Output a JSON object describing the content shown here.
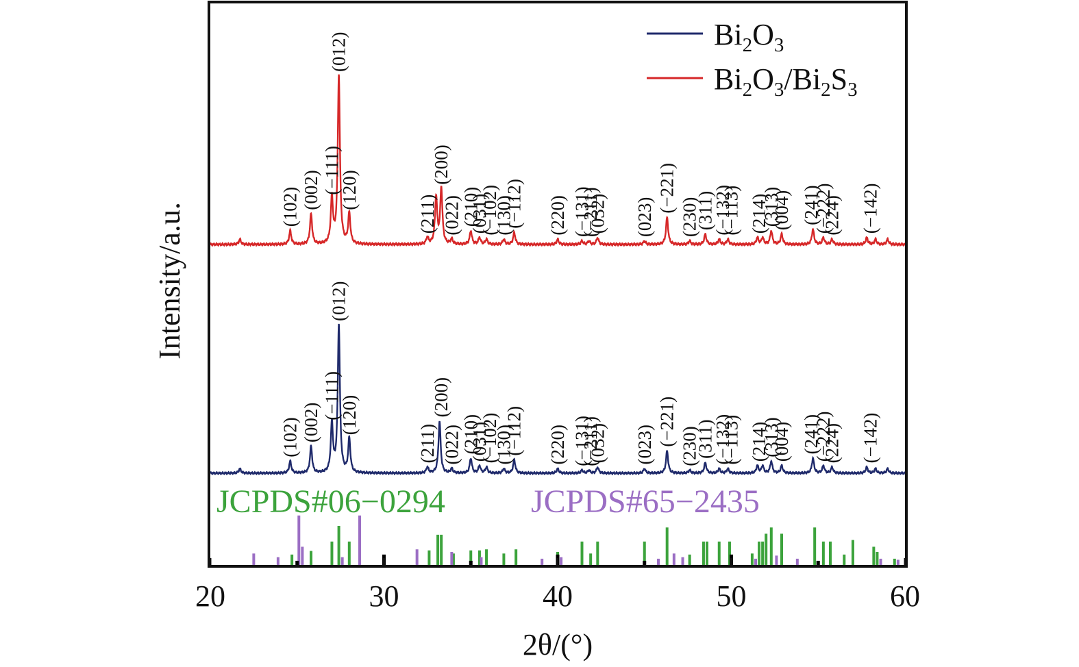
{
  "chart_data": {
    "type": "line",
    "xlabel": "2θ/(°)",
    "ylabel": "Intensity/a.u.",
    "xlim": [
      20,
      60
    ],
    "xticks": [
      20,
      30,
      40,
      50,
      60
    ],
    "grid": false,
    "legend_position": "top-right",
    "legend": [
      {
        "series": "Bi2O3",
        "base": "Bi",
        "sub1": "2",
        "mid": "O",
        "sub2": "3",
        "color": "#1f2a6b"
      },
      {
        "series": "Bi2O3/Bi2S3",
        "base": "Bi",
        "sub1": "2",
        "mid": "O",
        "sub2": "3",
        "slash": "/",
        "base2": "Bi",
        "sub3": "2",
        "mid2": "S",
        "sub4": "3",
        "color": "#d62728"
      }
    ],
    "series": [
      {
        "name": "Bi2O3",
        "color": "#1f2a6b",
        "baseline": 0.0,
        "peaks": [
          {
            "x": 21.7,
            "y": 0.03
          },
          {
            "x": 24.6,
            "y": 0.08
          },
          {
            "x": 25.8,
            "y": 0.18
          },
          {
            "x": 27.0,
            "y": 0.33
          },
          {
            "x": 27.4,
            "y": 1.0
          },
          {
            "x": 28.0,
            "y": 0.23
          },
          {
            "x": 32.5,
            "y": 0.04
          },
          {
            "x": 33.2,
            "y": 0.35
          },
          {
            "x": 33.9,
            "y": 0.03
          },
          {
            "x": 35.0,
            "y": 0.1
          },
          {
            "x": 35.5,
            "y": 0.05
          },
          {
            "x": 35.9,
            "y": 0.04
          },
          {
            "x": 36.9,
            "y": 0.03
          },
          {
            "x": 37.5,
            "y": 0.09
          },
          {
            "x": 40.0,
            "y": 0.03
          },
          {
            "x": 41.4,
            "y": 0.02
          },
          {
            "x": 41.8,
            "y": 0.02
          },
          {
            "x": 42.3,
            "y": 0.04
          },
          {
            "x": 45.0,
            "y": 0.03
          },
          {
            "x": 46.3,
            "y": 0.15
          },
          {
            "x": 47.6,
            "y": 0.02
          },
          {
            "x": 48.5,
            "y": 0.07
          },
          {
            "x": 49.3,
            "y": 0.03
          },
          {
            "x": 49.8,
            "y": 0.03
          },
          {
            "x": 51.5,
            "y": 0.05
          },
          {
            "x": 51.8,
            "y": 0.05
          },
          {
            "x": 52.3,
            "y": 0.08
          },
          {
            "x": 52.9,
            "y": 0.05
          },
          {
            "x": 54.7,
            "y": 0.1
          },
          {
            "x": 55.3,
            "y": 0.05
          },
          {
            "x": 55.8,
            "y": 0.04
          },
          {
            "x": 57.8,
            "y": 0.04
          },
          {
            "x": 58.3,
            "y": 0.03
          },
          {
            "x": 59.0,
            "y": 0.03
          }
        ]
      },
      {
        "name": "Bi2O3/Bi2S3",
        "color": "#d62728",
        "baseline": 0.0,
        "peaks": [
          {
            "x": 21.7,
            "y": 0.03
          },
          {
            "x": 24.6,
            "y": 0.08
          },
          {
            "x": 25.8,
            "y": 0.18
          },
          {
            "x": 27.0,
            "y": 0.27
          },
          {
            "x": 27.4,
            "y": 1.0
          },
          {
            "x": 28.0,
            "y": 0.18
          },
          {
            "x": 32.5,
            "y": 0.04
          },
          {
            "x": 33.0,
            "y": 0.28
          },
          {
            "x": 33.3,
            "y": 0.33
          },
          {
            "x": 33.9,
            "y": 0.03
          },
          {
            "x": 35.0,
            "y": 0.08
          },
          {
            "x": 35.5,
            "y": 0.04
          },
          {
            "x": 35.9,
            "y": 0.03
          },
          {
            "x": 36.9,
            "y": 0.03
          },
          {
            "x": 37.5,
            "y": 0.07
          },
          {
            "x": 40.0,
            "y": 0.03
          },
          {
            "x": 41.4,
            "y": 0.02
          },
          {
            "x": 41.8,
            "y": 0.02
          },
          {
            "x": 42.3,
            "y": 0.04
          },
          {
            "x": 45.0,
            "y": 0.02
          },
          {
            "x": 46.3,
            "y": 0.16
          },
          {
            "x": 47.6,
            "y": 0.02
          },
          {
            "x": 48.5,
            "y": 0.06
          },
          {
            "x": 49.3,
            "y": 0.03
          },
          {
            "x": 49.8,
            "y": 0.03
          },
          {
            "x": 51.5,
            "y": 0.04
          },
          {
            "x": 51.8,
            "y": 0.04
          },
          {
            "x": 52.3,
            "y": 0.08
          },
          {
            "x": 52.9,
            "y": 0.06
          },
          {
            "x": 54.7,
            "y": 0.09
          },
          {
            "x": 55.3,
            "y": 0.04
          },
          {
            "x": 55.8,
            "y": 0.03
          },
          {
            "x": 57.8,
            "y": 0.04
          },
          {
            "x": 58.3,
            "y": 0.03
          },
          {
            "x": 59.0,
            "y": 0.03
          }
        ]
      }
    ],
    "hkl_labels": [
      {
        "x": 24.6,
        "text": "(102)"
      },
      {
        "x": 25.8,
        "text": "(002)"
      },
      {
        "x": 27.0,
        "text": "(−111)"
      },
      {
        "x": 27.4,
        "text": "(012)"
      },
      {
        "x": 28.0,
        "text": "(120)"
      },
      {
        "x": 32.5,
        "text": "(211)"
      },
      {
        "x": 33.3,
        "text": "(200)"
      },
      {
        "x": 33.9,
        "text": "(022)"
      },
      {
        "x": 35.0,
        "text": "(210)"
      },
      {
        "x": 35.5,
        "text": "(031)"
      },
      {
        "x": 36.1,
        "text": "(−102)"
      },
      {
        "x": 36.9,
        "text": "(130)"
      },
      {
        "x": 37.5,
        "text": "(−112)"
      },
      {
        "x": 40.0,
        "text": "(220)"
      },
      {
        "x": 41.4,
        "text": "(−131)"
      },
      {
        "x": 41.9,
        "text": "(−211)"
      },
      {
        "x": 42.3,
        "text": "(032)"
      },
      {
        "x": 45.0,
        "text": "(023)"
      },
      {
        "x": 46.3,
        "text": "(−221)"
      },
      {
        "x": 47.6,
        "text": "(230)"
      },
      {
        "x": 48.5,
        "text": "(311)"
      },
      {
        "x": 49.5,
        "text": "(−132)"
      },
      {
        "x": 50.0,
        "text": "(−113)"
      },
      {
        "x": 51.6,
        "text": "(214)"
      },
      {
        "x": 52.3,
        "text": "(313)"
      },
      {
        "x": 52.9,
        "text": "(004)"
      },
      {
        "x": 54.6,
        "text": "(241)"
      },
      {
        "x": 55.3,
        "text": "(−222)"
      },
      {
        "x": 55.8,
        "text": "(224)"
      },
      {
        "x": 58.0,
        "text": "(−142)"
      }
    ],
    "references": [
      {
        "name": "JCPDS#06−0294",
        "color": "#3ca33c",
        "lines": [
          {
            "x": 24.7,
            "y": 0.2
          },
          {
            "x": 25.8,
            "y": 0.27
          },
          {
            "x": 27.0,
            "y": 0.45
          },
          {
            "x": 27.4,
            "y": 0.75
          },
          {
            "x": 28.0,
            "y": 0.45
          },
          {
            "x": 32.6,
            "y": 0.28
          },
          {
            "x": 33.1,
            "y": 0.58
          },
          {
            "x": 33.3,
            "y": 0.58
          },
          {
            "x": 34.0,
            "y": 0.22
          },
          {
            "x": 35.0,
            "y": 0.28
          },
          {
            "x": 35.5,
            "y": 0.28
          },
          {
            "x": 35.9,
            "y": 0.3
          },
          {
            "x": 36.9,
            "y": 0.22
          },
          {
            "x": 37.6,
            "y": 0.3
          },
          {
            "x": 40.0,
            "y": 0.25
          },
          {
            "x": 41.4,
            "y": 0.45
          },
          {
            "x": 41.9,
            "y": 0.22
          },
          {
            "x": 42.3,
            "y": 0.45
          },
          {
            "x": 45.0,
            "y": 0.45
          },
          {
            "x": 46.3,
            "y": 0.72
          },
          {
            "x": 47.6,
            "y": 0.2
          },
          {
            "x": 48.4,
            "y": 0.45
          },
          {
            "x": 48.6,
            "y": 0.45
          },
          {
            "x": 49.3,
            "y": 0.45
          },
          {
            "x": 49.9,
            "y": 0.45
          },
          {
            "x": 51.2,
            "y": 0.22
          },
          {
            "x": 51.6,
            "y": 0.45
          },
          {
            "x": 51.8,
            "y": 0.45
          },
          {
            "x": 52.0,
            "y": 0.6
          },
          {
            "x": 52.3,
            "y": 0.72
          },
          {
            "x": 52.9,
            "y": 0.6
          },
          {
            "x": 54.8,
            "y": 0.72
          },
          {
            "x": 55.3,
            "y": 0.45
          },
          {
            "x": 55.7,
            "y": 0.45
          },
          {
            "x": 56.5,
            "y": 0.2
          },
          {
            "x": 57.0,
            "y": 0.48
          },
          {
            "x": 58.2,
            "y": 0.35
          },
          {
            "x": 58.4,
            "y": 0.25
          },
          {
            "x": 59.4,
            "y": 0.12
          }
        ]
      },
      {
        "name": "JCPDS#65−2435",
        "color": "#9b6ec4",
        "lines": [
          {
            "x": 22.5,
            "y": 0.22
          },
          {
            "x": 23.9,
            "y": 0.15
          },
          {
            "x": 25.1,
            "y": 0.95
          },
          {
            "x": 25.3,
            "y": 0.35
          },
          {
            "x": 27.6,
            "y": 0.15
          },
          {
            "x": 28.6,
            "y": 0.95
          },
          {
            "x": 31.9,
            "y": 0.3
          },
          {
            "x": 33.9,
            "y": 0.25
          },
          {
            "x": 35.6,
            "y": 0.15
          },
          {
            "x": 39.1,
            "y": 0.12
          },
          {
            "x": 40.2,
            "y": 0.15
          },
          {
            "x": 45.8,
            "y": 0.12
          },
          {
            "x": 46.7,
            "y": 0.22
          },
          {
            "x": 47.2,
            "y": 0.15
          },
          {
            "x": 51.4,
            "y": 0.12
          },
          {
            "x": 52.6,
            "y": 0.18
          },
          {
            "x": 53.8,
            "y": 0.12
          },
          {
            "x": 58.6,
            "y": 0.12
          },
          {
            "x": 59.6,
            "y": 0.1
          }
        ]
      }
    ],
    "marker_lines": [
      {
        "x": 25.0,
        "y": 0.08
      },
      {
        "x": 30.0,
        "y": 0.2
      },
      {
        "x": 35.0,
        "y": 0.08
      },
      {
        "x": 40.0,
        "y": 0.2
      },
      {
        "x": 45.0,
        "y": 0.08
      },
      {
        "x": 50.0,
        "y": 0.2
      },
      {
        "x": 55.0,
        "y": 0.08
      }
    ]
  }
}
